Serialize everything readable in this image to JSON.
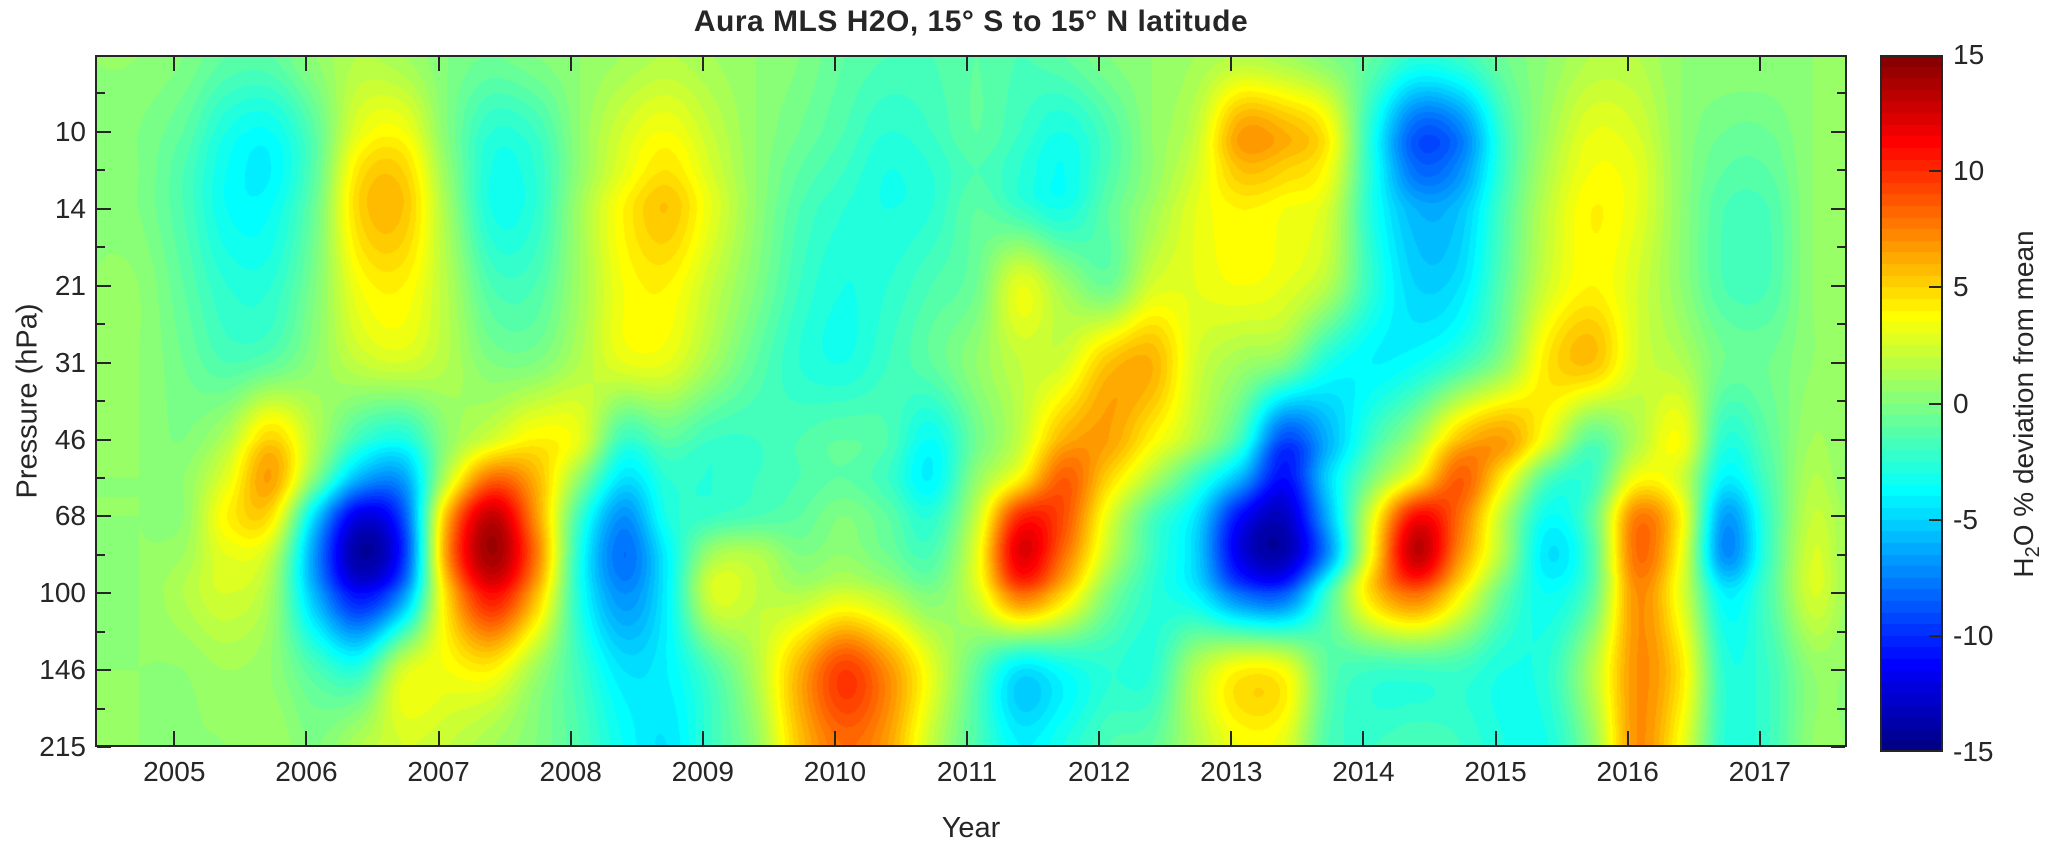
{
  "title": "Aura MLS H2O, 15° S to 15° N latitude",
  "axes": {
    "x_label": "Year",
    "y_label": "Pressure (hPa)",
    "x_ticks": [
      2005,
      2006,
      2007,
      2008,
      2009,
      2010,
      2011,
      2012,
      2013,
      2014,
      2015,
      2016,
      2017
    ],
    "x_range": [
      2004.4,
      2017.66
    ],
    "y_range": [
      6.81,
      215.4
    ],
    "y_ticks": [
      {
        "label": "10",
        "p": 10
      },
      {
        "label": "14",
        "p": 14.68
      },
      {
        "label": "21",
        "p": 21.54
      },
      {
        "label": "31",
        "p": 31.62
      },
      {
        "label": "46",
        "p": 46.42
      },
      {
        "label": "68",
        "p": 68.13
      },
      {
        "label": "100",
        "p": 100
      },
      {
        "label": "146",
        "p": 146.8
      },
      {
        "label": "215",
        "p": 215.4
      }
    ],
    "y_minor_ticks": [
      8.25,
      12.12,
      17.78,
      26.1,
      38.31,
      56.23,
      82.54,
      121.15,
      177.83
    ]
  },
  "colorbar": {
    "min": -15,
    "max": 15,
    "ticks": [
      {
        "label": "15",
        "v": 15
      },
      {
        "label": "10",
        "v": 10
      },
      {
        "label": "5",
        "v": 5
      },
      {
        "label": "0",
        "v": 0
      },
      {
        "label": "-5",
        "v": -5
      },
      {
        "label": "-10",
        "v": -10
      },
      {
        "label": "-15",
        "v": -15
      }
    ],
    "label_h": "H",
    "label_sub": "2",
    "label_rest": "O % deviation from mean"
  },
  "chart_data": {
    "type": "heatmap",
    "title": "Aura MLS H2O, 15° S to 15° N latitude",
    "xlabel": "Year",
    "ylabel": "Pressure (hPa)",
    "colorbar_label": "H2O % deviation from mean",
    "colormap": "jet",
    "clim": [
      -15,
      15
    ],
    "contour_step": 0.5,
    "x_axis_scale": "linear",
    "y_axis_scale": "log",
    "x": [
      2004.4,
      2004.73,
      2005.07,
      2005.4,
      2005.73,
      2006.07,
      2006.4,
      2006.73,
      2007.07,
      2007.4,
      2007.73,
      2008.07,
      2008.4,
      2008.73,
      2009.07,
      2009.4,
      2009.73,
      2010.07,
      2010.4,
      2010.73,
      2011.07,
      2011.4,
      2011.73,
      2012.07,
      2012.4,
      2012.73,
      2013.07,
      2013.4,
      2013.73,
      2014.07,
      2014.4,
      2014.73,
      2015.07,
      2015.4,
      2015.73,
      2016.07,
      2016.4,
      2016.73,
      2017.07,
      2017.4,
      2017.65
    ],
    "pressure": [
      6.81,
      10,
      12.12,
      14.68,
      21.54,
      31.62,
      46.42,
      56.23,
      68.13,
      82.54,
      100,
      146.8,
      215.4
    ],
    "values": [
      [
        0.5,
        0.5,
        0,
        -1,
        -1,
        0.5,
        1.5,
        1,
        0,
        -0.5,
        0,
        0.5,
        1,
        1.5,
        1,
        0.5,
        0,
        -1,
        -1.5,
        -1.5,
        -1,
        -1.5,
        -1,
        0,
        0.5,
        1,
        1.5,
        1,
        0,
        -1,
        -2.5,
        -2,
        -0.5,
        0.5,
        1.5,
        1.5,
        0.5,
        0.5,
        0.5,
        0.5,
        0.5
      ],
      [
        0.5,
        0,
        -1,
        -3,
        -3.5,
        -1,
        3,
        3.5,
        0,
        -2.5,
        -2,
        0.5,
        2.5,
        3.5,
        2,
        0.5,
        -0.5,
        -1.5,
        -2.5,
        -2,
        -1,
        -2,
        -3,
        -1.5,
        0.5,
        2,
        6.5,
        6,
        4,
        -3,
        -8.5,
        -7.5,
        -2,
        1,
        3,
        2.5,
        0.5,
        -0.5,
        -0.5,
        0.5,
        0.5
      ],
      [
        0.5,
        0,
        -1.5,
        -3.5,
        -4,
        -1,
        4.5,
        5,
        0.5,
        -3,
        -2.5,
        0.5,
        3,
        4.5,
        2.5,
        0.5,
        -1,
        -2,
        -3,
        -2.5,
        -1.5,
        -2.5,
        -3.5,
        -1.5,
        0.5,
        2.5,
        5.5,
        5,
        3.5,
        -3,
        -8,
        -7,
        -2,
        1.5,
        3.5,
        3,
        0.5,
        -1,
        -1,
        0.5,
        0.5
      ],
      [
        0.5,
        0,
        -1.5,
        -3.5,
        -3.5,
        -0.5,
        5,
        5.5,
        1,
        -3,
        -2.5,
        1,
        4,
        5.5,
        3,
        0.5,
        -1.5,
        -2.5,
        -3,
        -2.5,
        -1,
        -2,
        -3,
        -1,
        1,
        3,
        4,
        3.5,
        2.5,
        -3,
        -6,
        -5.5,
        -1.5,
        2,
        4,
        3,
        0.5,
        -1.5,
        -1.5,
        0.5,
        0.5
      ],
      [
        0.5,
        0.5,
        -1,
        -2.5,
        -2.5,
        0,
        3.5,
        4,
        1.5,
        -1.5,
        -1.5,
        1,
        3.5,
        4,
        2,
        0,
        -2,
        -3,
        -2.5,
        -1.5,
        -0.5,
        3,
        1,
        -0.5,
        2.5,
        3,
        3.5,
        3,
        1.5,
        -2.5,
        -5,
        -4.5,
        -1,
        2.5,
        4,
        2.5,
        0.5,
        -1.5,
        -1.5,
        0.5,
        0.5
      ],
      [
        0.5,
        0.5,
        -0.5,
        -1.5,
        -1,
        0.5,
        2,
        2.5,
        1.5,
        0,
        0,
        1.5,
        3,
        3,
        1,
        -1,
        -2.5,
        -3,
        -2,
        -1,
        0.5,
        2,
        2.5,
        5.5,
        6,
        2.5,
        1,
        0,
        -3,
        -4,
        -3.5,
        -2,
        0.5,
        4.5,
        5.5,
        2.5,
        1.5,
        -0.5,
        -0.5,
        0.5,
        0.5
      ],
      [
        0.5,
        0.5,
        0,
        1.5,
        5,
        1.5,
        -2,
        -3,
        0.5,
        2.5,
        4,
        3,
        -2,
        -1,
        -2,
        -2,
        -1.5,
        -1,
        -1.5,
        -3.5,
        -0.5,
        2,
        6,
        6.5,
        4,
        1.5,
        -2,
        -9,
        -6,
        -2,
        1,
        5.5,
        6.5,
        3,
        -1,
        1.5,
        3.5,
        -2.5,
        -1,
        1,
        0.5
      ],
      [
        0.5,
        0.5,
        0.5,
        3,
        6.5,
        0,
        -6,
        -6.5,
        2,
        8,
        6,
        0.5,
        -4.5,
        -2.5,
        -2.5,
        -2,
        -1.5,
        -1,
        -2,
        -4,
        0.5,
        4,
        8.5,
        5,
        1.5,
        -2,
        -6,
        -11,
        -5,
        0,
        4,
        8.5,
        4,
        -1.5,
        -2,
        3.5,
        2.5,
        -4,
        -1.5,
        1.5,
        0.5
      ],
      [
        0.5,
        0.5,
        0.5,
        4,
        4.5,
        -5,
        -12,
        -9,
        6,
        13,
        7,
        -2,
        -7,
        -3,
        -2,
        -1.5,
        -1,
        0,
        -1,
        -2.5,
        2,
        10,
        9,
        3,
        -1.5,
        -4.5,
        -11,
        -13,
        -6,
        3,
        11,
        8,
        1.5,
        -3.5,
        -1,
        7.5,
        4,
        -6.5,
        -2,
        2,
        1
      ],
      [
        0.5,
        0.5,
        1,
        3,
        2,
        -7,
        -14,
        -10,
        7,
        14,
        8,
        -3,
        -8,
        -4,
        1,
        1.5,
        0,
        0.5,
        -0.5,
        -1.5,
        3,
        12,
        8,
        2,
        -2,
        -5,
        -12,
        -13.5,
        -7,
        4,
        13,
        7,
        1,
        -4.5,
        -1.5,
        8,
        3.5,
        -7,
        -2,
        2.5,
        1
      ],
      [
        0.5,
        0.5,
        1.5,
        2.5,
        1,
        -6,
        -11,
        -7,
        5,
        11,
        6,
        -3,
        -7,
        -4,
        2.5,
        2,
        1.5,
        2.5,
        1.5,
        0,
        2.5,
        8,
        5,
        0,
        -2.5,
        -4,
        -8,
        -8.5,
        -2,
        5,
        8,
        4,
        -1,
        -3.5,
        -1,
        7,
        3,
        -4,
        -1.5,
        2.5,
        1
      ],
      [
        0.5,
        0.5,
        0.5,
        1,
        0.5,
        -1.5,
        -2.5,
        2.5,
        3.5,
        4,
        1,
        -2,
        -4.5,
        -4,
        -1.5,
        1.5,
        6,
        9.5,
        7,
        3,
        -1,
        -4.5,
        -3.5,
        -2.5,
        -2.5,
        1.5,
        4,
        3.5,
        -1,
        -2,
        -2,
        -2,
        -3,
        -2.5,
        1.5,
        7,
        4.5,
        -2.5,
        -2,
        0.5,
        0.5
      ],
      [
        0.5,
        0.5,
        0.5,
        0.5,
        1,
        0,
        1.5,
        2.5,
        2,
        1,
        0,
        -1.5,
        -3.5,
        -4.5,
        -2,
        0.5,
        5.5,
        8,
        6.5,
        2,
        -1.5,
        -4,
        -3,
        -1.5,
        -1,
        1.5,
        3.5,
        3,
        -1.5,
        -2,
        -1.5,
        -2,
        -3,
        -3,
        0.5,
        7,
        3.5,
        -2.5,
        -2,
        0.5,
        0.5
      ]
    ]
  }
}
